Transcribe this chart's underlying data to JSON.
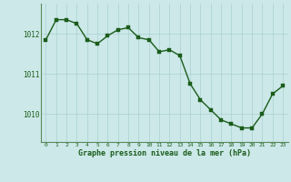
{
  "x": [
    0,
    1,
    2,
    3,
    4,
    5,
    6,
    7,
    8,
    9,
    10,
    11,
    12,
    13,
    14,
    15,
    16,
    17,
    18,
    19,
    20,
    21,
    22,
    23
  ],
  "y": [
    1011.85,
    1012.35,
    1012.35,
    1012.25,
    1011.85,
    1011.75,
    1011.95,
    1012.1,
    1012.15,
    1011.9,
    1011.85,
    1011.55,
    1011.6,
    1011.45,
    1010.75,
    1010.35,
    1010.1,
    1009.85,
    1009.75,
    1009.65,
    1009.65,
    1010.0,
    1010.5,
    1010.7
  ],
  "line_color": "#1a5c1a",
  "marker_color": "#1a5c1a",
  "bg_color": "#cce8e8",
  "grid_color": "#aad0d0",
  "xlabel": "Graphe pression niveau de la mer (hPa)",
  "xlabel_color": "#1a5c1a",
  "tick_color": "#1a5c1a",
  "spine_color": "#5a8a5a",
  "ylim": [
    1009.3,
    1012.75
  ],
  "yticks": [
    1010,
    1011,
    1012
  ],
  "xticks": [
    0,
    1,
    2,
    3,
    4,
    5,
    6,
    7,
    8,
    9,
    10,
    11,
    12,
    13,
    14,
    15,
    16,
    17,
    18,
    19,
    20,
    21,
    22,
    23
  ],
  "figsize": [
    3.2,
    2.0
  ],
  "dpi": 100,
  "marker_size": 2.5,
  "line_width": 1.0
}
